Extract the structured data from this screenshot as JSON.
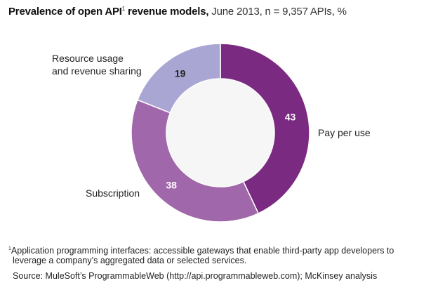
{
  "header": {
    "title_bold": "Prevalence of open API",
    "title_sup": "1",
    "title_bold_tail": " revenue models,",
    "title_rest": " June 2013, n = 9,357 APIs, %"
  },
  "chart_data": {
    "type": "pie",
    "donut": true,
    "title": "Prevalence of open API revenue models",
    "categories": [
      "Pay per use",
      "Subscription",
      "Resource usage and revenue sharing"
    ],
    "values": [
      43,
      38,
      19
    ],
    "colors": [
      "#7b2a81",
      "#a068aa",
      "#a9a6d3"
    ],
    "value_label_colors": [
      "#ffffff",
      "#ffffff",
      "#222222"
    ],
    "labels": {
      "pay_per_use": "Pay per use",
      "subscription": "Subscription",
      "resource_line1": "Resource usage",
      "resource_line2": "and revenue sharing"
    }
  },
  "footnote": {
    "sup": "1",
    "line1": "Application programming interfaces: accessible gateways that enable third-party app developers to",
    "line2": "leverage a company’s aggregated data or selected services."
  },
  "source": "Source: MuleSoft’s ProgrammableWeb (http://api.programmableweb.com); McKinsey analysis"
}
